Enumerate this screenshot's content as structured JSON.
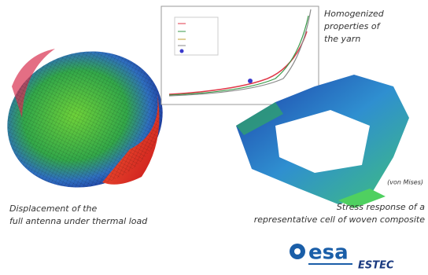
{
  "captions": {
    "yarn": [
      "Homogenized",
      "properties of",
      "the yarn"
    ],
    "antenna": [
      "Displacement of the",
      "full antenna under thermal load"
    ],
    "cell": [
      "Stress response of a",
      "representative cell of woven composite"
    ],
    "stress_measure": "(von Mises)"
  },
  "logo": {
    "name": "esa",
    "site": "ESTEC"
  }
}
